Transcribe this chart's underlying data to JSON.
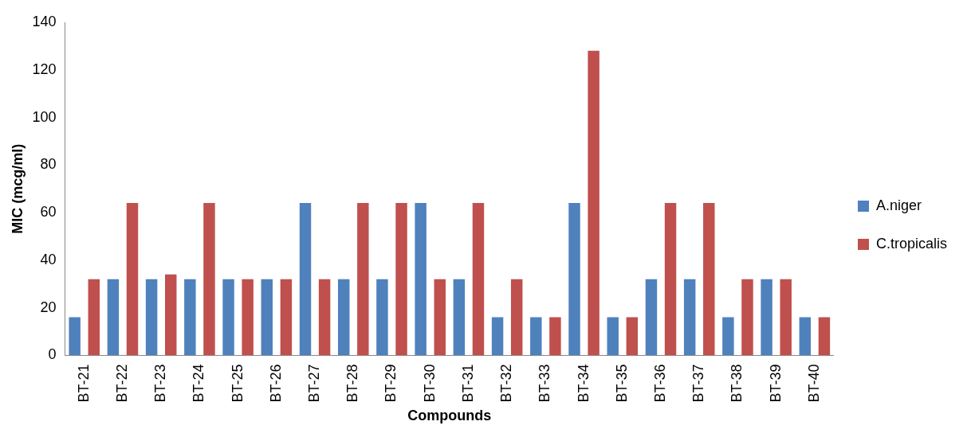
{
  "chart_data": {
    "type": "bar",
    "xlabel": "Compounds",
    "ylabel": "MIC (mcg/ml)",
    "categories": [
      "BT-21",
      "BT-22",
      "BT-23",
      "BT-24",
      "BT-25",
      "BT-26",
      "BT-27",
      "BT-28",
      "BT-29",
      "BT-30",
      "BT-31",
      "BT-32",
      "BT-33",
      "BT-34",
      "BT-35",
      "BT-36",
      "BT-37",
      "BT-38",
      "BT-39",
      "BT-40"
    ],
    "series": [
      {
        "name": "A.niger",
        "color": "#4f81bd",
        "values": [
          16,
          32,
          32,
          32,
          32,
          32,
          64,
          32,
          32,
          64,
          32,
          16,
          16,
          64,
          16,
          32,
          32,
          16,
          32,
          16
        ]
      },
      {
        "name": "C.tropicalis",
        "color": "#c0504d",
        "values": [
          32,
          64,
          34,
          64,
          32,
          32,
          32,
          64,
          64,
          32,
          64,
          32,
          16,
          128,
          16,
          64,
          64,
          32,
          32,
          16
        ]
      }
    ],
    "ylim": [
      0,
      140
    ],
    "yticks": [
      0,
      20,
      40,
      60,
      80,
      100,
      120,
      140
    ],
    "grid": false,
    "legend": "right"
  }
}
